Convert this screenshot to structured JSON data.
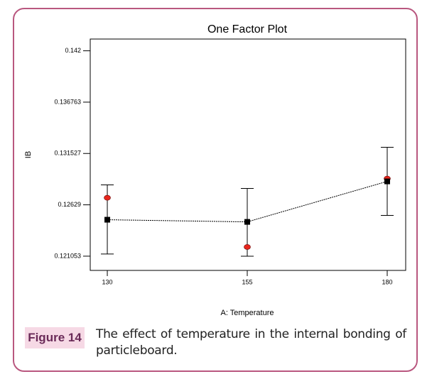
{
  "chart_data": {
    "type": "errorbar",
    "title": "One Factor Plot",
    "x_label": "A: Temperature",
    "y_label": "IB",
    "x": [
      130,
      155,
      180
    ],
    "values": [
      0.12477,
      0.12455,
      0.12868
    ],
    "lower": [
      0.12127,
      0.12105,
      0.12521
    ],
    "upper": [
      0.12832,
      0.12796,
      0.13216
    ],
    "points": [
      0.12701,
      0.12199,
      0.12897
    ],
    "line_color": "#000000",
    "point_color": "#e8261c",
    "xlim": [
      126.95,
      183.3
    ],
    "xticks": [
      130,
      155,
      180
    ],
    "ylim": [
      0.1196,
      0.1432
    ],
    "yticks": [
      0.121053,
      0.12629,
      0.131527,
      0.136763,
      0.142
    ]
  },
  "caption": {
    "label": "Figure 14",
    "text": "The effect of temperature in the internal bonding of particleboard."
  }
}
